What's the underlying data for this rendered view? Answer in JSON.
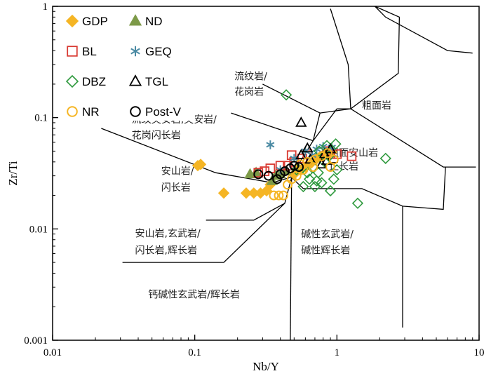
{
  "chart_data": {
    "type": "scatter",
    "xlabel": "Nb/Y",
    "ylabel": "Zr/Ti",
    "xscale": "log",
    "yscale": "log",
    "xlim": [
      0.01,
      10
    ],
    "ylim": [
      0.001,
      1
    ],
    "xticks": [
      {
        "v": 0.01,
        "label": "0.01"
      },
      {
        "v": 0.1,
        "label": "0.1"
      },
      {
        "v": 1,
        "label": "1"
      },
      {
        "v": 10,
        "label": "10"
      }
    ],
    "yticks": [
      {
        "v": 0.001,
        "label": "0.001"
      },
      {
        "v": 0.01,
        "label": "0.01"
      },
      {
        "v": 0.1,
        "label": "0.1"
      },
      {
        "v": 1,
        "label": "1"
      }
    ],
    "legend_position": "top-left",
    "boundaries": [
      [
        [
          0.022,
          0.08
        ],
        [
          0.14,
          0.032
        ],
        [
          0.35,
          0.026
        ],
        [
          0.47,
          0.029
        ]
      ],
      [
        [
          0.12,
          0.012
        ],
        [
          0.26,
          0.012
        ],
        [
          0.43,
          0.017
        ],
        [
          0.48,
          0.029
        ]
      ],
      [
        [
          0.031,
          0.005
        ],
        [
          0.16,
          0.005
        ],
        [
          0.43,
          0.017
        ]
      ],
      [
        [
          0.48,
          0.029
        ],
        [
          0.47,
          0.001
        ]
      ],
      [
        [
          0.48,
          0.029
        ],
        [
          0.58,
          0.023
        ],
        [
          1.5,
          0.023
        ],
        [
          2.9,
          0.016
        ],
        [
          5.6,
          0.015
        ],
        [
          5.8,
          0.036
        ]
      ],
      [
        [
          2.9,
          0.016
        ],
        [
          2.9,
          0.0013
        ]
      ],
      [
        [
          0.3,
          0.2
        ],
        [
          0.76,
          0.11
        ],
        [
          1.25,
          0.12
        ],
        [
          5.6,
          0.036
        ],
        [
          9.5,
          0.036
        ]
      ],
      [
        [
          0.47,
          0.029
        ],
        [
          0.68,
          0.062
        ],
        [
          0.76,
          0.11
        ]
      ],
      [
        [
          0.68,
          0.062
        ],
        [
          1.0,
          0.12
        ]
      ],
      [
        [
          0.18,
          0.11
        ],
        [
          0.68,
          0.062
        ]
      ],
      [
        [
          1.0,
          0.12
        ],
        [
          1.25,
          0.12
        ]
      ],
      [
        [
          1.25,
          0.12
        ],
        [
          1.2,
          0.3
        ],
        [
          0.9,
          0.95
        ]
      ],
      [
        [
          1.25,
          0.12
        ],
        [
          2.7,
          0.25
        ],
        [
          2.75,
          0.8
        ],
        [
          1.85,
          1.0
        ]
      ],
      [
        [
          1.85,
          1.0
        ],
        [
          2.2,
          0.8
        ],
        [
          6.0,
          0.4
        ],
        [
          9.0,
          0.38
        ]
      ]
    ],
    "region_labels": [
      {
        "text": "流纹岩/",
        "x": 0.19,
        "y": 0.22
      },
      {
        "text": "花岗岩",
        "x": 0.19,
        "y": 0.16
      },
      {
        "text": "粗面岩",
        "x": 1.5,
        "y": 0.12
      },
      {
        "text": "流纹英安岩,英安岩/",
        "x": 0.036,
        "y": 0.09
      },
      {
        "text": "花岗闪长岩",
        "x": 0.036,
        "y": 0.065
      },
      {
        "text": "粗面安山岩",
        "x": 0.88,
        "y": 0.045
      },
      {
        "text": "正长岩",
        "x": 0.88,
        "y": 0.034
      },
      {
        "text": "安山岩/",
        "x": 0.058,
        "y": 0.031
      },
      {
        "text": "闪长岩",
        "x": 0.058,
        "y": 0.022
      },
      {
        "text": "安山岩,玄武岩/",
        "x": 0.038,
        "y": 0.0085
      },
      {
        "text": "闪长岩,辉长岩",
        "x": 0.038,
        "y": 0.006
      },
      {
        "text": "碱性玄武岩/",
        "x": 0.56,
        "y": 0.0084
      },
      {
        "text": "碱性辉长岩",
        "x": 0.56,
        "y": 0.006
      },
      {
        "text": "钙碱性玄武岩/辉长岩",
        "x": 0.047,
        "y": 0.0024
      }
    ],
    "series": [
      {
        "name": "GDP",
        "marker": "diamond-filled",
        "color": "#f5b524",
        "points": [
          [
            0.11,
            0.038
          ],
          [
            0.105,
            0.037
          ],
          [
            0.16,
            0.021
          ],
          [
            0.23,
            0.021
          ],
          [
            0.26,
            0.021
          ],
          [
            0.29,
            0.021
          ],
          [
            0.32,
            0.022
          ],
          [
            0.34,
            0.025
          ],
          [
            0.5,
            0.031
          ],
          [
            0.56,
            0.034
          ],
          [
            0.6,
            0.036
          ],
          [
            0.66,
            0.039
          ],
          [
            0.72,
            0.043
          ],
          [
            0.78,
            0.045
          ],
          [
            0.86,
            0.047
          ],
          [
            0.92,
            0.049
          ]
        ]
      },
      {
        "name": "ND",
        "marker": "triangle-filled",
        "color": "#7d9a48",
        "points": [
          [
            0.245,
            0.031
          ],
          [
            0.27,
            0.032
          ],
          [
            0.35,
            0.027
          ],
          [
            0.37,
            0.03
          ],
          [
            0.4,
            0.031
          ],
          [
            0.44,
            0.033
          ],
          [
            0.53,
            0.036
          ]
        ]
      },
      {
        "name": "BL",
        "marker": "square-open",
        "color": "#d93b33",
        "points": [
          [
            0.28,
            0.032
          ],
          [
            0.31,
            0.033
          ],
          [
            0.34,
            0.035
          ],
          [
            0.4,
            0.037
          ],
          [
            0.45,
            0.037
          ],
          [
            0.5,
            0.04
          ],
          [
            0.57,
            0.043
          ],
          [
            0.62,
            0.047
          ],
          [
            0.85,
            0.05
          ],
          [
            0.9,
            0.047
          ],
          [
            1.0,
            0.047
          ],
          [
            1.27,
            0.045
          ],
          [
            0.48,
            0.046
          ]
        ]
      },
      {
        "name": "GEQ",
        "marker": "asterisk",
        "color": "#4a8aa3",
        "points": [
          [
            0.34,
            0.057
          ],
          [
            0.4,
            0.034
          ],
          [
            0.5,
            0.043
          ],
          [
            0.6,
            0.05
          ],
          [
            0.67,
            0.046
          ],
          [
            0.72,
            0.052
          ],
          [
            0.8,
            0.055
          ],
          [
            0.92,
            0.054
          ]
        ]
      },
      {
        "name": "DBZ",
        "marker": "diamond-open",
        "color": "#2f9a3e",
        "points": [
          [
            0.44,
            0.16
          ],
          [
            0.7,
            0.024
          ],
          [
            0.72,
            0.027
          ],
          [
            0.78,
            0.026
          ],
          [
            0.9,
            0.022
          ],
          [
            0.95,
            0.028
          ],
          [
            1.0,
            0.034
          ],
          [
            0.58,
            0.024
          ],
          [
            0.64,
            0.028
          ],
          [
            0.82,
            0.04
          ],
          [
            0.75,
            0.05
          ],
          [
            0.85,
            0.056
          ],
          [
            0.98,
            0.058
          ],
          [
            0.88,
            0.045
          ],
          [
            1.4,
            0.017
          ],
          [
            2.2,
            0.043
          ],
          [
            0.52,
            0.034
          ],
          [
            0.62,
            0.032
          ],
          [
            0.68,
            0.036
          ],
          [
            0.74,
            0.032
          ]
        ]
      },
      {
        "name": "TGL",
        "marker": "triangle-open",
        "color": "#000000",
        "points": [
          [
            0.56,
            0.09
          ],
          [
            0.9,
            0.052
          ],
          [
            0.62,
            0.053
          ],
          [
            0.56,
            0.046
          ],
          [
            0.65,
            0.042
          ],
          [
            0.78,
            0.038
          ],
          [
            0.85,
            0.041
          ],
          [
            0.82,
            0.047
          ]
        ]
      },
      {
        "name": "NR",
        "marker": "circle-open",
        "color": "#f5b524",
        "points": [
          [
            0.36,
            0.02
          ],
          [
            0.39,
            0.02
          ],
          [
            0.42,
            0.02
          ],
          [
            0.45,
            0.025
          ],
          [
            0.48,
            0.028
          ],
          [
            0.52,
            0.03
          ],
          [
            0.58,
            0.034
          ],
          [
            0.62,
            0.04
          ],
          [
            0.7,
            0.042
          ],
          [
            0.78,
            0.045
          ],
          [
            0.86,
            0.048
          ],
          [
            0.95,
            0.042
          ],
          [
            0.9,
            0.036
          ],
          [
            0.55,
            0.038
          ],
          [
            0.68,
            0.036
          ]
        ]
      },
      {
        "name": "Post-V",
        "marker": "circle-open",
        "color": "#000000",
        "points": [
          [
            0.28,
            0.031
          ],
          [
            0.33,
            0.03
          ],
          [
            0.38,
            0.028
          ],
          [
            0.4,
            0.031
          ],
          [
            0.43,
            0.033
          ],
          [
            0.47,
            0.035
          ],
          [
            0.5,
            0.037
          ],
          [
            0.54,
            0.036
          ]
        ]
      }
    ]
  }
}
